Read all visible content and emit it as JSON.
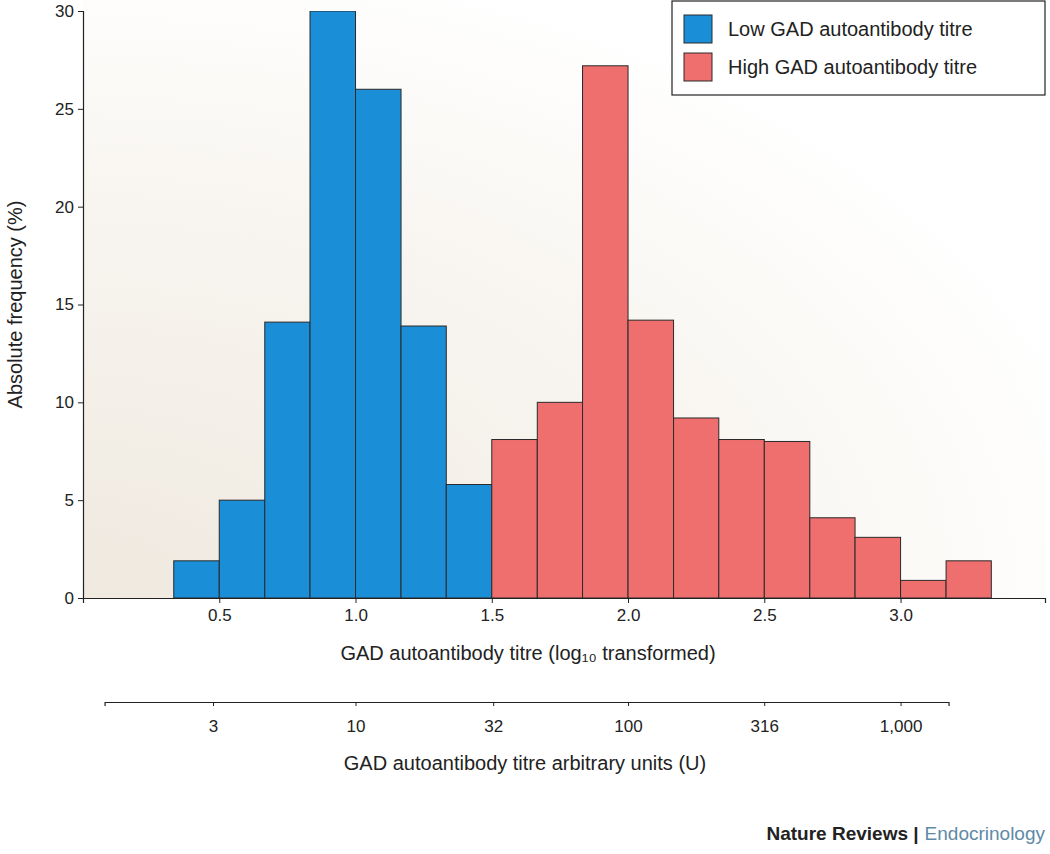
{
  "chart_data": {
    "type": "histogram",
    "x_label": "GAD autoantibody titre (log₁₀ transformed)",
    "y_label": "Absolute frequency (%)",
    "x2_label": "GAD autoantibody titre arbitrary units (U)",
    "source": [
      "Nature Reviews |",
      "Endocrinology"
    ],
    "series": [
      {
        "name": "Low GAD autoantibody titre",
        "color": "#1a8fd8",
        "bins": [
          0.333,
          0.5,
          0.667,
          0.833,
          1.0,
          1.167,
          1.333,
          1.5
        ],
        "values": [
          1.9,
          5.0,
          14.1,
          30.0,
          26.0,
          13.9,
          5.8
        ]
      },
      {
        "name": "High GAD autoantibody titre",
        "color": "#ef6e6e",
        "bins": [
          1.5,
          1.667,
          1.833,
          2.0,
          2.167,
          2.333,
          2.5,
          2.667,
          2.833,
          3.0,
          3.167,
          3.333
        ],
        "values": [
          8.1,
          10.0,
          27.2,
          14.2,
          9.2,
          8.1,
          8.0,
          4.1,
          3.1,
          0.9,
          1.9
        ]
      }
    ],
    "xlim": [
      0,
      3.53
    ],
    "xticks": [
      0.5,
      {
        "value": 1,
        "label": "1.0"
      },
      1.5,
      {
        "value": 2,
        "label": "2.0"
      },
      2.5,
      {
        "value": 3,
        "label": "3.0"
      }
    ],
    "ylim": [
      0,
      30
    ],
    "yticks": [
      0,
      5,
      10,
      15,
      20,
      25,
      30
    ],
    "x2lim": [
      1.2,
      1500
    ],
    "x2ticks": [
      3,
      10,
      32,
      100,
      316,
      {
        "value": 1000,
        "label": "1,000"
      }
    ],
    "legend": "upper right",
    "grid": false
  }
}
